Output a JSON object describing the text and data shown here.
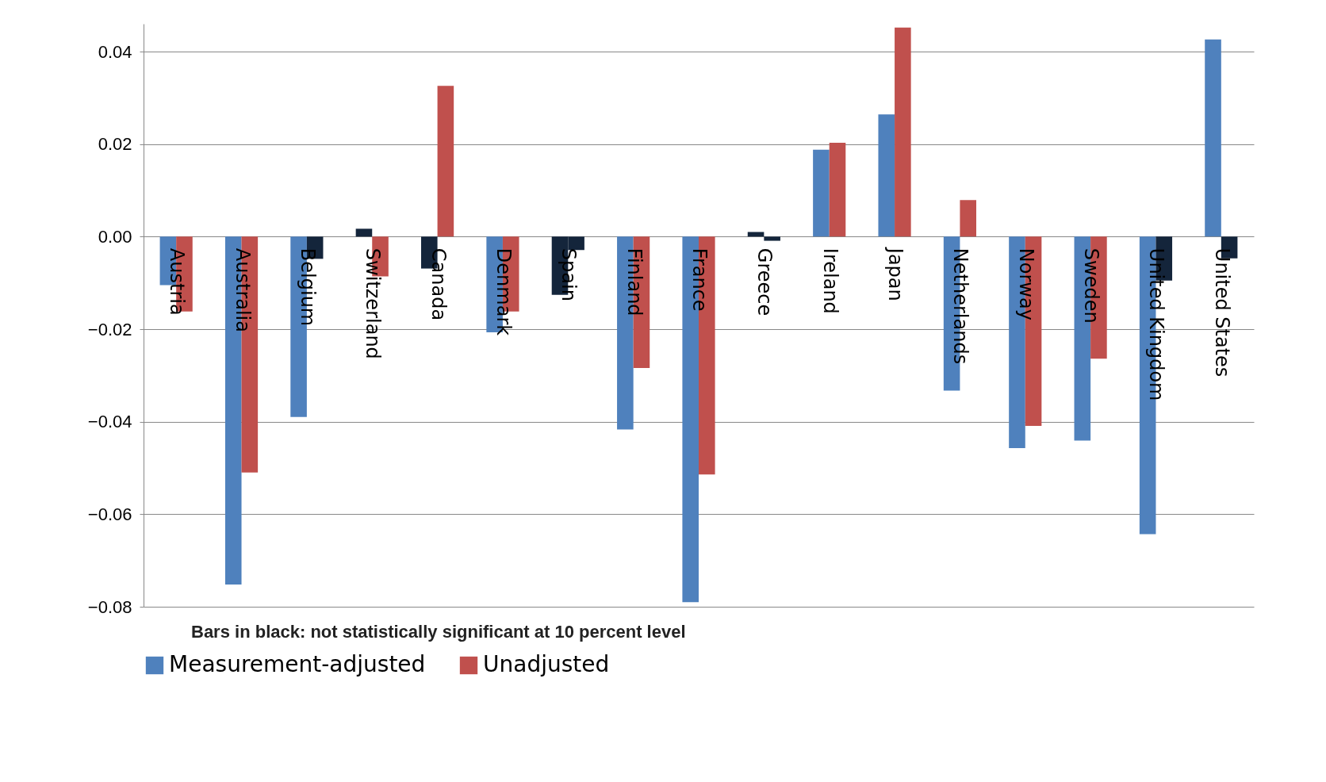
{
  "chart_data": {
    "type": "bar",
    "categories": [
      "Austria",
      "Australia",
      "Belgium",
      "Switzerland",
      "Canada",
      "Denmark",
      "Spain",
      "Finland",
      "France",
      "Greece",
      "Ireland",
      "Japan",
      "Netherlands",
      "Norway",
      "Sweden",
      "United Kingdom",
      "United States"
    ],
    "series": [
      {
        "name": "Measurement-adjusted",
        "color": "#4f81bd",
        "colors": [
          "#4f81bd",
          "#4f81bd",
          "#4f81bd",
          "#14253b",
          "#14253b",
          "#4f81bd",
          "#14253b",
          "#4f81bd",
          "#4f81bd",
          "#14253b",
          "#4f81bd",
          "#4f81bd",
          "#4f81bd",
          "#4f81bd",
          "#4f81bd",
          "#4f81bd",
          "#4f81bd"
        ],
        "values": [
          -0.0105,
          -0.0752,
          -0.039,
          0.0017,
          -0.0069,
          -0.0207,
          -0.0126,
          -0.0417,
          -0.079,
          0.001,
          0.0188,
          0.0264,
          -0.0333,
          -0.0457,
          -0.0441,
          -0.0643,
          0.0426
        ]
      },
      {
        "name": "Unadjusted",
        "color": "#c0504d",
        "colors": [
          "#c0504d",
          "#c0504d",
          "#14253b",
          "#c0504d",
          "#c0504d",
          "#c0504d",
          "#14253b",
          "#c0504d",
          "#c0504d",
          "#14253b",
          "#c0504d",
          "#c0504d",
          "#c0504d",
          "#c0504d",
          "#c0504d",
          "#14253b",
          "#14253b"
        ],
        "values": [
          -0.0162,
          -0.051,
          -0.0048,
          -0.0086,
          0.0326,
          -0.0162,
          -0.0029,
          -0.0284,
          -0.0514,
          -0.0009,
          0.0203,
          0.0452,
          0.0079,
          -0.0409,
          -0.0264,
          -0.0095,
          -0.0047
        ]
      }
    ],
    "ylim": [
      -0.08,
      0.046
    ],
    "yticks": [
      -0.08,
      -0.06,
      -0.04,
      -0.02,
      {
        "value": 0,
        "label": "0.00"
      },
      0.02,
      0.04
    ],
    "grid": "y",
    "legend": "bottom",
    "annotations": [
      "Bars in black: not statistically significant at 10 percent level"
    ]
  }
}
